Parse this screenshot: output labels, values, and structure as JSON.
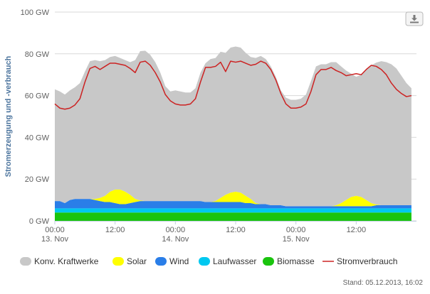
{
  "chart_data": {
    "type": "area",
    "ylabel": "Stromerzeugung und -verbrauch",
    "ylim": [
      0,
      100
    ],
    "y_unit": "GW",
    "y_ticks": [
      0,
      20,
      40,
      60,
      80,
      100
    ],
    "y_tick_labels": [
      "0 GW",
      "20 GW",
      "40 GW",
      "60 GW",
      "80 GW",
      "100 GW"
    ],
    "x_ticks": [
      0,
      12,
      24,
      36,
      48,
      60
    ],
    "x_tick_labels": [
      {
        "time": "00:00",
        "date": "13. Nov"
      },
      {
        "time": "12:00",
        "date": ""
      },
      {
        "time": "00:00",
        "date": "14. Nov"
      },
      {
        "time": "12:00",
        "date": ""
      },
      {
        "time": "00:00",
        "date": "15. Nov"
      },
      {
        "time": "12:00",
        "date": ""
      }
    ],
    "x_hours": [
      0,
      1,
      2,
      3,
      4,
      5,
      6,
      7,
      8,
      9,
      10,
      11,
      12,
      13,
      14,
      15,
      16,
      17,
      18,
      19,
      20,
      21,
      22,
      23,
      24,
      25,
      26,
      27,
      28,
      29,
      30,
      31,
      32,
      33,
      34,
      35,
      36,
      37,
      38,
      39,
      40,
      41,
      42,
      43,
      44,
      45,
      46,
      47,
      48,
      49,
      50,
      51,
      52,
      53,
      54,
      55,
      56,
      57,
      58,
      59,
      60,
      61,
      62,
      63,
      64,
      65,
      66,
      67,
      68,
      69,
      70,
      71
    ],
    "stacked": true,
    "series": [
      {
        "name": "Biomasse",
        "color": "#1ac40e",
        "type": "area",
        "values": [
          4.0,
          4.0,
          4.0,
          4.0,
          4.0,
          4.0,
          4.0,
          4.0,
          4.0,
          4.0,
          4.0,
          4.0,
          4.0,
          4.0,
          4.0,
          4.0,
          4.0,
          4.0,
          4.0,
          4.0,
          4.0,
          4.0,
          4.0,
          4.0,
          4.0,
          4.0,
          4.0,
          4.0,
          4.0,
          4.0,
          4.0,
          4.0,
          4.0,
          4.0,
          4.0,
          4.0,
          4.0,
          4.0,
          4.0,
          4.0,
          4.0,
          4.0,
          4.0,
          4.0,
          4.0,
          4.0,
          4.0,
          4.0,
          4.0,
          4.0,
          4.0,
          4.0,
          4.0,
          4.0,
          4.0,
          4.0,
          4.0,
          4.0,
          4.0,
          4.0,
          4.0,
          4.0,
          4.0,
          4.0,
          4.0,
          4.0,
          4.0,
          4.0,
          4.0,
          4.0,
          4.0,
          4.0
        ]
      },
      {
        "name": "Laufwasser",
        "color": "#00c8f0",
        "type": "area",
        "values": [
          2.0,
          2.0,
          2.0,
          2.0,
          2.0,
          2.0,
          2.0,
          2.0,
          2.0,
          2.0,
          2.0,
          2.0,
          2.0,
          2.0,
          2.0,
          2.0,
          2.0,
          2.0,
          2.0,
          2.0,
          2.0,
          2.0,
          2.0,
          2.0,
          2.0,
          2.0,
          2.0,
          2.0,
          2.0,
          2.0,
          2.0,
          2.0,
          2.0,
          2.0,
          2.0,
          2.0,
          2.0,
          2.0,
          2.0,
          2.0,
          2.0,
          2.0,
          2.0,
          2.0,
          2.0,
          2.0,
          2.0,
          2.0,
          2.0,
          2.0,
          2.0,
          2.0,
          2.0,
          2.0,
          2.0,
          2.0,
          2.0,
          2.0,
          2.0,
          2.0,
          2.0,
          2.0,
          2.0,
          2.0,
          2.0,
          2.0,
          2.0,
          2.0,
          2.0,
          2.0,
          2.0,
          2.0
        ]
      },
      {
        "name": "Wind",
        "color": "#2a7ee8",
        "type": "area",
        "values": [
          3.5,
          3.5,
          2.5,
          4.0,
          4.5,
          4.5,
          4.5,
          4.5,
          4.0,
          3.5,
          3.0,
          3.0,
          2.5,
          2.0,
          2.0,
          2.5,
          3.0,
          3.5,
          3.5,
          3.5,
          3.5,
          3.5,
          3.5,
          3.5,
          3.5,
          3.5,
          3.5,
          3.5,
          3.5,
          3.5,
          3.0,
          3.0,
          3.0,
          3.0,
          3.0,
          3.0,
          3.0,
          3.0,
          2.5,
          2.5,
          2.0,
          2.0,
          2.0,
          1.5,
          1.5,
          1.5,
          1.0,
          1.0,
          1.0,
          1.0,
          1.0,
          1.0,
          1.0,
          1.0,
          1.0,
          1.0,
          1.0,
          1.0,
          1.0,
          1.0,
          1.0,
          1.0,
          1.0,
          1.0,
          1.5,
          1.5,
          1.5,
          1.5,
          1.5,
          1.5,
          1.5,
          1.5
        ]
      },
      {
        "name": "Solar",
        "color": "#ffff00",
        "type": "area",
        "values": [
          0,
          0,
          0,
          0,
          0,
          0,
          0,
          0,
          0.5,
          1.5,
          3.0,
          5.0,
          6.5,
          7.0,
          6.0,
          4.0,
          1.5,
          0.3,
          0,
          0,
          0,
          0,
          0,
          0,
          0,
          0,
          0,
          0,
          0,
          0,
          0,
          0,
          0.5,
          2.0,
          3.5,
          4.5,
          5.0,
          4.5,
          3.5,
          2.0,
          0.5,
          0,
          0,
          0,
          0,
          0,
          0,
          0,
          0,
          0,
          0,
          0,
          0,
          0,
          0,
          0,
          0.5,
          1.5,
          3.0,
          4.5,
          5.0,
          4.5,
          3.0,
          1.5,
          0.3,
          0,
          0,
          0,
          0,
          0,
          0,
          0
        ]
      },
      {
        "name": "Konv. Kraftwerke",
        "color": "#c8c8c8",
        "type": "area",
        "values": [
          53.5,
          52.5,
          52.0,
          52.5,
          53.5,
          55.5,
          61.0,
          66.0,
          66.5,
          65.5,
          65.0,
          64.5,
          64.0,
          63.0,
          63.0,
          63.5,
          66.5,
          71.5,
          72.0,
          70.0,
          66.5,
          61.5,
          55.0,
          52.5,
          53.0,
          52.5,
          52.0,
          52.0,
          54.0,
          61.5,
          66.5,
          68.5,
          68.5,
          70.0,
          68.0,
          69.5,
          69.5,
          69.5,
          68.5,
          68.0,
          69.5,
          71.0,
          69.5,
          66.5,
          61.5,
          55.0,
          52.0,
          51.0,
          51.0,
          51.5,
          53.5,
          60.0,
          67.0,
          68.0,
          68.0,
          69.0,
          68.5,
          65.5,
          62.0,
          59.0,
          57.0,
          58.5,
          62.5,
          66.0,
          68.0,
          69.0,
          68.5,
          67.5,
          65.5,
          62.0,
          58.5,
          56.0
        ]
      },
      {
        "name": "Stromverbrauch",
        "color": "#cc2222",
        "type": "line",
        "values": [
          56.0,
          54.0,
          53.5,
          54.0,
          55.5,
          58.5,
          66.5,
          73.0,
          74.0,
          72.5,
          74.0,
          75.5,
          75.5,
          75.0,
          74.5,
          73.0,
          71.0,
          76.0,
          76.5,
          74.5,
          71.0,
          66.5,
          60.5,
          57.5,
          56.0,
          55.5,
          55.5,
          56.0,
          58.5,
          66.5,
          73.5,
          73.5,
          74.0,
          76.0,
          71.5,
          76.5,
          76.0,
          76.5,
          75.5,
          74.5,
          75.0,
          76.5,
          75.5,
          72.5,
          67.5,
          61.0,
          56.0,
          54.0,
          54.0,
          54.5,
          56.0,
          62.0,
          70.0,
          72.5,
          72.5,
          73.5,
          72.0,
          71.0,
          69.5,
          70.0,
          70.5,
          70.0,
          72.5,
          74.5,
          74.0,
          72.5,
          70.0,
          66.0,
          63.0,
          61.0,
          59.5,
          60.0
        ]
      }
    ],
    "legend": {
      "placement": "bottom",
      "items": [
        {
          "name": "Konv. Kraftwerke",
          "color": "#c8c8c8",
          "marker": "area"
        },
        {
          "name": "Solar",
          "color": "#ffff00",
          "marker": "area"
        },
        {
          "name": "Wind",
          "color": "#2a7ee8",
          "marker": "area"
        },
        {
          "name": "Laufwasser",
          "color": "#00c8f0",
          "marker": "area"
        },
        {
          "name": "Biomasse",
          "color": "#1ac40e",
          "marker": "area"
        },
        {
          "name": "Stromverbrauch",
          "color": "#cc2222",
          "marker": "line"
        }
      ]
    },
    "grid": true
  },
  "footer": {
    "timestamp": "Stand: 05.12.2013, 16:02"
  },
  "toolbar": {
    "download_icon": "download-icon"
  },
  "colors": {
    "axis_text": "#606060",
    "ylabel_text": "#4d759e",
    "grid": "#d8d8d8"
  }
}
